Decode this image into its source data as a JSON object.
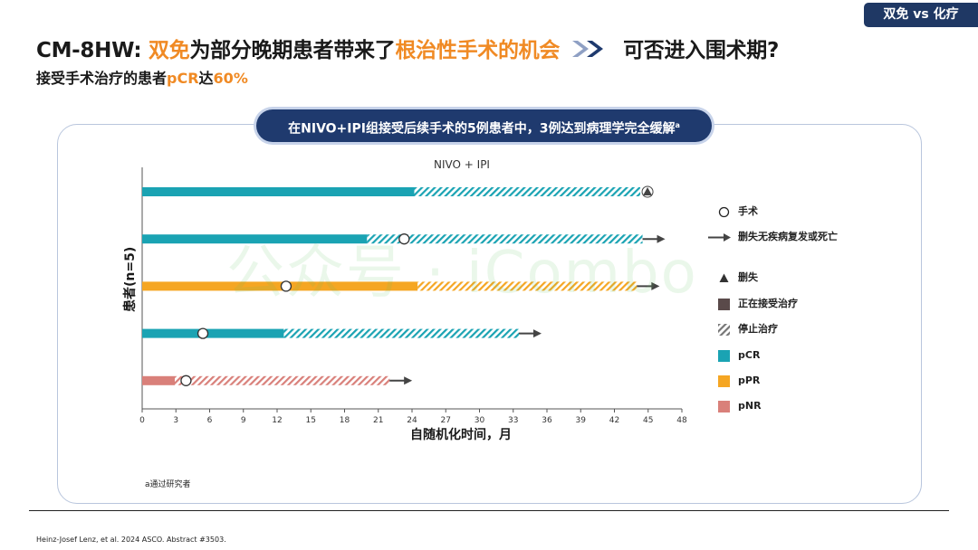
{
  "tag": "双免 vs 化疗",
  "title": {
    "prefix": "CM-8HW: ",
    "orange1": "双免",
    "middle": "为部分晚期患者带来了",
    "orange2": "根治性手术的机会",
    "question": "可否进入围术期?"
  },
  "subtitle": {
    "prefix": "接受手术治疗的患者",
    "orange": "pCR",
    "middle": "达",
    "value": "60%"
  },
  "banner": {
    "text": "在NIVO+IPI组接受后续手术的5例患者中，3例达到病理学完全缓解",
    "sup": "a"
  },
  "legend": {
    "surgery": "手术",
    "ongoing_arrow": "删失无疾病复发或死亡",
    "censored": "删失",
    "on_treatment": "正在接受治疗",
    "stopped": "停止治疗",
    "pcr": "pCR",
    "ppr": "pPR",
    "pnr": "pNR"
  },
  "footnote": "a通过研究者",
  "citation": "Heinz-Josef Lenz, et al. 2024 ASCO. Abstract #3503.",
  "watermark": "公众号 · iCombo",
  "colors": {
    "pCR": "#1aa3b3",
    "pPR": "#f5a623",
    "pNR": "#d9807a",
    "navy": "#1f3a6e",
    "orange": "#f08a24"
  },
  "chart_data": {
    "type": "bar",
    "title": "NIVO + IPI",
    "xlabel": "自随机化时间，月",
    "ylabel": "患者(n=5)",
    "xlim": [
      0,
      48
    ],
    "xticks": [
      0,
      3,
      6,
      9,
      12,
      15,
      18,
      21,
      24,
      27,
      30,
      33,
      36,
      39,
      42,
      45,
      48
    ],
    "patients": [
      {
        "response": "pCR",
        "treatment_end": 24.2,
        "end": 44.3,
        "surgery": null,
        "event": "censored"
      },
      {
        "response": "pCR",
        "treatment_end": 20.0,
        "end": 44.5,
        "surgery": 23.3,
        "event": "arrow"
      },
      {
        "response": "pPR",
        "treatment_end": 24.5,
        "end": 44.0,
        "surgery": 12.8,
        "event": "arrow"
      },
      {
        "response": "pCR",
        "treatment_end": 12.6,
        "end": 33.5,
        "surgery": 5.4,
        "event": "arrow"
      },
      {
        "response": "pNR",
        "treatment_end": 2.9,
        "end": 22.0,
        "surgery": 3.9,
        "event": "arrow"
      }
    ]
  }
}
